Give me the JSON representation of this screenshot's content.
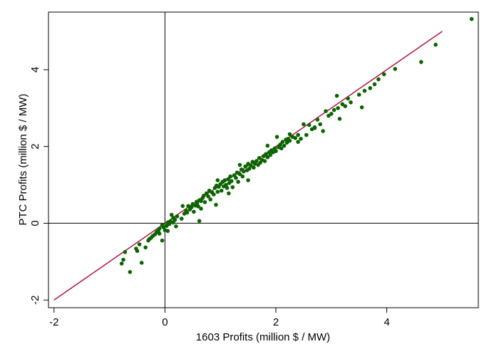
{
  "chart_data": {
    "type": "scatter",
    "title": "",
    "xlabel": "1603 Profits (million $ / MW)",
    "ylabel": "PTC Profits (million $ / MW)",
    "xlim": [
      -2.1,
      5.65
    ],
    "ylim": [
      -2.2,
      5.5
    ],
    "xticks": [
      -2,
      0,
      2,
      4
    ],
    "yticks": [
      -2,
      0,
      2,
      4
    ],
    "xtick_labels": [
      "-2",
      "0",
      "2",
      "4"
    ],
    "ytick_labels": [
      "-2",
      "0",
      "2",
      "4"
    ],
    "grid": false,
    "reference_lines": {
      "x": 0,
      "y": 0
    },
    "line_45": {
      "x": [
        -2,
        5
      ],
      "y": [
        -2,
        5
      ],
      "color": "#b0183d"
    },
    "marker_color": "#0a6400",
    "series": [
      {
        "points": [
          [
            -0.75,
            -0.95
          ],
          [
            -0.78,
            -1.05
          ],
          [
            -0.72,
            -0.75
          ],
          [
            -0.63,
            -1.27
          ],
          [
            -0.52,
            -0.66
          ],
          [
            -0.5,
            -0.72
          ],
          [
            -0.46,
            -0.55
          ],
          [
            -0.42,
            -1.03
          ],
          [
            -0.35,
            -0.63
          ],
          [
            -0.3,
            -0.45
          ],
          [
            -0.28,
            -0.41
          ],
          [
            -0.25,
            -0.38
          ],
          [
            -0.22,
            -0.33
          ],
          [
            -0.18,
            -0.29
          ],
          [
            -0.15,
            -0.23
          ],
          [
            -0.12,
            -0.2
          ],
          [
            -0.1,
            -0.14
          ],
          [
            -0.05,
            -0.45
          ],
          [
            -0.03,
            -0.1
          ],
          [
            0.0,
            -0.18
          ],
          [
            0.03,
            -0.07
          ],
          [
            0.05,
            0.02
          ],
          [
            0.08,
            -0.02
          ],
          [
            0.1,
            0.05
          ],
          [
            0.12,
            0.22
          ],
          [
            0.15,
            0.14
          ],
          [
            0.18,
            0.09
          ],
          [
            0.2,
            -0.08
          ],
          [
            0.22,
            0.18
          ],
          [
            0.3,
            0.12
          ],
          [
            0.35,
            0.25
          ],
          [
            0.38,
            0.33
          ],
          [
            0.4,
            0.28
          ],
          [
            0.42,
            0.45
          ],
          [
            0.45,
            0.36
          ],
          [
            0.48,
            0.42
          ],
          [
            0.5,
            0.5
          ],
          [
            0.52,
            0.3
          ],
          [
            0.55,
            0.46
          ],
          [
            0.57,
            0.56
          ],
          [
            0.58,
            0.52
          ],
          [
            0.6,
            0.44
          ],
          [
            0.62,
            0.06
          ],
          [
            0.62,
            0.6
          ],
          [
            0.65,
            0.58
          ],
          [
            0.68,
            0.66
          ],
          [
            0.7,
            0.72
          ],
          [
            0.72,
            0.55
          ],
          [
            0.75,
            0.78
          ],
          [
            0.78,
            0.7
          ],
          [
            0.8,
            0.85
          ],
          [
            0.82,
            0.62
          ],
          [
            0.85,
            0.8
          ],
          [
            0.88,
            0.75
          ],
          [
            0.9,
            0.92
          ],
          [
            0.92,
            0.48
          ],
          [
            0.93,
            0.98
          ],
          [
            0.95,
            0.82
          ],
          [
            0.97,
            0.95
          ],
          [
            1.0,
            1.02
          ],
          [
            1.02,
            0.85
          ],
          [
            1.04,
            1.08
          ],
          [
            1.06,
            0.96
          ],
          [
            1.08,
            1.12
          ],
          [
            1.1,
            1.0
          ],
          [
            1.12,
            0.92
          ],
          [
            1.14,
            1.15
          ],
          [
            1.16,
            1.05
          ],
          [
            1.18,
            1.22
          ],
          [
            1.2,
            1.1
          ],
          [
            1.22,
            0.94
          ],
          [
            1.25,
            1.25
          ],
          [
            1.28,
            1.18
          ],
          [
            1.3,
            1.32
          ],
          [
            1.32,
            1.08
          ],
          [
            1.35,
            1.28
          ],
          [
            1.38,
            1.4
          ],
          [
            1.4,
            1.22
          ],
          [
            1.42,
            1.35
          ],
          [
            1.45,
            1.48
          ],
          [
            1.48,
            1.38
          ],
          [
            1.5,
            1.12
          ],
          [
            1.5,
            1.55
          ],
          [
            1.52,
            1.42
          ],
          [
            1.55,
            1.5
          ],
          [
            1.58,
            1.6
          ],
          [
            1.6,
            1.45
          ],
          [
            1.62,
            1.55
          ],
          [
            1.65,
            1.62
          ],
          [
            1.68,
            1.52
          ],
          [
            1.7,
            1.7
          ],
          [
            1.72,
            1.58
          ],
          [
            1.75,
            1.65
          ],
          [
            1.78,
            1.75
          ],
          [
            1.8,
            1.62
          ],
          [
            1.82,
            1.8
          ],
          [
            1.85,
            1.72
          ],
          [
            1.88,
            1.85
          ],
          [
            1.9,
            1.78
          ],
          [
            1.92,
            1.9
          ],
          [
            1.95,
            1.85
          ],
          [
            1.98,
            1.95
          ],
          [
            2.0,
            1.88
          ],
          [
            2.02,
            2.25
          ],
          [
            2.05,
            1.98
          ],
          [
            2.08,
            2.05
          ],
          [
            2.1,
            1.95
          ],
          [
            2.12,
            2.12
          ],
          [
            2.15,
            2.02
          ],
          [
            2.18,
            2.18
          ],
          [
            2.2,
            2.1
          ],
          [
            2.22,
            2.2
          ],
          [
            2.25,
            2.15
          ],
          [
            2.3,
            2.25
          ],
          [
            2.35,
            2.22
          ],
          [
            2.4,
            2.3
          ],
          [
            2.45,
            2.2
          ],
          [
            2.5,
            2.58
          ],
          [
            2.55,
            2.3
          ],
          [
            2.6,
            2.56
          ],
          [
            2.65,
            2.45
          ],
          [
            2.7,
            2.48
          ],
          [
            2.75,
            2.7
          ],
          [
            2.8,
            2.58
          ],
          [
            2.85,
            2.4
          ],
          [
            2.9,
            2.92
          ],
          [
            2.95,
            2.8
          ],
          [
            3.0,
            2.85
          ],
          [
            3.05,
            2.95
          ],
          [
            3.1,
            3.32
          ],
          [
            3.12,
            3.0
          ],
          [
            3.15,
            2.72
          ],
          [
            3.2,
            3.1
          ],
          [
            3.25,
            3.05
          ],
          [
            3.3,
            3.25
          ],
          [
            3.35,
            3.15
          ],
          [
            3.5,
            3.35
          ],
          [
            3.55,
            3.02
          ],
          [
            3.6,
            3.45
          ],
          [
            3.7,
            3.52
          ],
          [
            3.78,
            3.62
          ],
          [
            3.85,
            3.75
          ],
          [
            3.95,
            3.88
          ],
          [
            4.15,
            4.02
          ],
          [
            4.62,
            4.2
          ],
          [
            4.88,
            4.65
          ],
          [
            5.53,
            5.32
          ],
          [
            0.15,
            0.02
          ],
          [
            -0.05,
            -0.05
          ],
          [
            0.05,
            -0.2
          ],
          [
            0.95,
            1.12
          ],
          [
            1.85,
            2.02
          ],
          [
            1.15,
            0.78
          ],
          [
            0.65,
            0.38
          ],
          [
            2.4,
            2.12
          ],
          [
            1.35,
            1.52
          ],
          [
            2.25,
            2.32
          ],
          [
            2.7,
            2.5
          ],
          [
            0.32,
            0.45
          ],
          [
            -0.1,
            -0.27
          ]
        ]
      }
    ]
  }
}
